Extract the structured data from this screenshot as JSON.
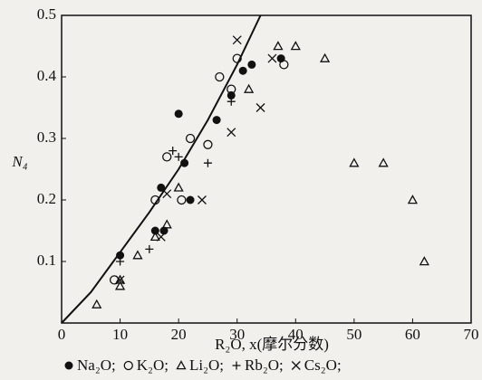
{
  "chart_data": {
    "type": "scatter",
    "y_label": "N₄",
    "x_label": "R₂O, x(摩尔分数)",
    "xlim": [
      0,
      70
    ],
    "ylim": [
      0,
      0.5
    ],
    "xticks": [
      0,
      10,
      20,
      30,
      40,
      50,
      60,
      70
    ],
    "yticks": [
      0.1,
      0.2,
      0.3,
      0.4,
      0.5
    ],
    "curve": {
      "x": [
        0,
        5,
        10,
        15,
        20,
        25,
        30,
        34
      ],
      "y": [
        0,
        0.05,
        0.115,
        0.18,
        0.25,
        0.33,
        0.42,
        0.5
      ]
    },
    "series": [
      {
        "name": "Na₂O;",
        "marker": "dot",
        "color": "#111",
        "x": [
          10,
          16,
          17.5,
          17,
          21,
          22,
          20,
          26.5,
          29,
          31,
          32.5,
          37.5
        ],
        "y": [
          0.11,
          0.15,
          0.15,
          0.22,
          0.26,
          0.2,
          0.34,
          0.33,
          0.37,
          0.41,
          0.42,
          0.43
        ]
      },
      {
        "name": "K₂O;",
        "marker": "circle",
        "color": "#111",
        "x": [
          9,
          16,
          18,
          20.5,
          22,
          25,
          27,
          29,
          30,
          38
        ],
        "y": [
          0.07,
          0.2,
          0.27,
          0.2,
          0.3,
          0.29,
          0.4,
          0.38,
          0.43,
          0.42
        ]
      },
      {
        "name": "Li₂O;",
        "marker": "triangle",
        "color": "#111",
        "x": [
          6,
          10,
          10,
          13,
          16,
          18,
          20,
          32,
          37,
          40,
          45,
          50,
          55,
          60,
          62
        ],
        "y": [
          0.03,
          0.06,
          0.07,
          0.11,
          0.14,
          0.16,
          0.22,
          0.38,
          0.45,
          0.45,
          0.43,
          0.26,
          0.26,
          0.2,
          0.1
        ]
      },
      {
        "name": "Rb₂O;",
        "marker": "plus",
        "color": "#111",
        "x": [
          10,
          15,
          19,
          20,
          25,
          29
        ],
        "y": [
          0.1,
          0.12,
          0.28,
          0.27,
          0.26,
          0.36
        ]
      },
      {
        "name": "Cs₂O;",
        "marker": "cross",
        "color": "#111",
        "x": [
          10,
          17,
          18,
          24,
          29,
          30,
          34,
          36
        ],
        "y": [
          0.07,
          0.14,
          0.21,
          0.2,
          0.31,
          0.46,
          0.35,
          0.43
        ]
      }
    ]
  }
}
